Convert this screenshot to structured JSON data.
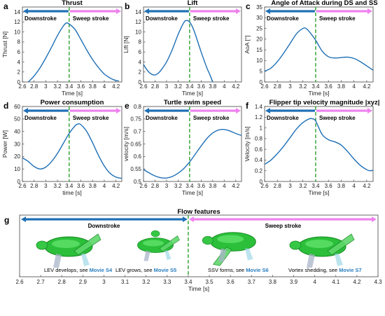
{
  "chart_data": [
    {
      "type": "line",
      "panel": "a",
      "title": "Thrust",
      "xlabel": "Time [s]",
      "ylabel": "Thrust [N]",
      "xlim": [
        2.6,
        4.3
      ],
      "ylim": [
        0,
        15
      ],
      "xticks": [
        "2.6",
        "2.8",
        "3",
        "3.2",
        "3.4",
        "3.6",
        "3.8",
        "4",
        "4.2"
      ],
      "yticks": [
        "0",
        "2",
        "4",
        "6",
        "8",
        "10",
        "12",
        "14"
      ],
      "divider_x": 3.4,
      "labels": {
        "left": "Downstroke",
        "right": "Sweep stroke"
      },
      "x": [
        2.7,
        2.8,
        2.9,
        3.0,
        3.1,
        3.2,
        3.3,
        3.35,
        3.4,
        3.5,
        3.6,
        3.7,
        3.8,
        3.9,
        4.0,
        4.1,
        4.15,
        4.2,
        4.25
      ],
      "y": [
        0.0,
        1.2,
        2.8,
        4.8,
        7.0,
        9.3,
        11.2,
        11.8,
        11.6,
        10.5,
        8.5,
        6.4,
        4.5,
        2.9,
        1.6,
        0.8,
        0.5,
        0.3,
        0.2
      ]
    },
    {
      "type": "line",
      "panel": "b",
      "title": "Lift",
      "xlabel": "Time [s]",
      "ylabel": "Lift [N]",
      "xlim": [
        2.6,
        4.3
      ],
      "ylim": [
        0,
        15
      ],
      "xticks": [
        "2.6",
        "2.8",
        "3",
        "3.2",
        "3.4",
        "3.6",
        "3.8",
        "4",
        "4.2"
      ],
      "yticks": [
        "0",
        "2",
        "4",
        "6",
        "8",
        "10",
        "12",
        "14"
      ],
      "divider_x": 3.4,
      "labels": {
        "left": "Downstroke",
        "right": "Sweep stroke"
      },
      "x": [
        2.6,
        2.65,
        2.7,
        2.75,
        2.8,
        2.85,
        2.9,
        3.0,
        3.1,
        3.2,
        3.3,
        3.35,
        3.4,
        3.45,
        3.5,
        3.6,
        3.7,
        3.75,
        3.8
      ],
      "y": [
        3.5,
        2.6,
        1.9,
        1.5,
        1.4,
        1.7,
        2.3,
        4.0,
        6.5,
        9.5,
        11.9,
        12.3,
        12.0,
        11.0,
        9.5,
        6.0,
        2.8,
        1.5,
        0.0
      ]
    },
    {
      "type": "line",
      "panel": "c",
      "title": "Angle of Attack during DS and SS",
      "xlabel": "Time [s]",
      "ylabel": "AoA [°]",
      "xlim": [
        2.6,
        4.3
      ],
      "ylim": [
        0,
        35
      ],
      "xticks": [
        "2.6",
        "2.8",
        "3",
        "3.2",
        "3.4",
        "3.6",
        "3.8",
        "4",
        "4.2"
      ],
      "yticks": [
        "0",
        "5",
        "10",
        "15",
        "20",
        "25",
        "30",
        "35"
      ],
      "divider_x": 3.4,
      "labels": {
        "left": "Downstroke",
        "right": "Sweep stroke"
      },
      "x": [
        2.6,
        2.7,
        2.8,
        2.9,
        3.0,
        3.1,
        3.2,
        3.25,
        3.3,
        3.4,
        3.5,
        3.6,
        3.7,
        3.8,
        3.9,
        4.0,
        4.1,
        4.2,
        4.3
      ],
      "y": [
        5.0,
        6.5,
        9.5,
        13.5,
        18.0,
        22.5,
        25.0,
        25.0,
        23.5,
        19.5,
        14.5,
        11.8,
        11.2,
        11.4,
        11.6,
        11.0,
        9.5,
        7.5,
        5.5
      ]
    },
    {
      "type": "line",
      "panel": "d",
      "title": "Power consumption",
      "xlabel": "time [s]",
      "ylabel": "Power [W]",
      "xlim": [
        2.6,
        4.3
      ],
      "ylim": [
        0,
        60
      ],
      "xticks": [
        "2.6",
        "2.8",
        "3",
        "3.2",
        "3.4",
        "3.6",
        "3.8",
        "4",
        "4.2"
      ],
      "yticks": [
        "0",
        "10",
        "20",
        "30",
        "40",
        "50",
        "60"
      ],
      "divider_x": 3.4,
      "labels": {
        "left": "Downstroke",
        "right": "Sweep stroke"
      },
      "x": [
        2.6,
        2.7,
        2.8,
        2.9,
        3.0,
        3.1,
        3.2,
        3.3,
        3.4,
        3.5,
        3.55,
        3.6,
        3.7,
        3.8,
        3.9,
        4.0,
        4.1,
        4.2,
        4.3
      ],
      "y": [
        19.0,
        16.0,
        12.0,
        10.0,
        11.5,
        16.0,
        22.5,
        30.5,
        38.5,
        44.5,
        46.0,
        45.5,
        40.0,
        31.0,
        21.0,
        12.5,
        6.5,
        3.5,
        2.5
      ]
    },
    {
      "type": "line",
      "panel": "e",
      "title": "Turtle swim speed",
      "xlabel": "Time [s]",
      "ylabel": "velocity [m/s]",
      "xlim": [
        2.6,
        4.3
      ],
      "ylim": [
        0.5,
        0.8
      ],
      "xticks": [
        "2.6",
        "2.8",
        "3",
        "3.2",
        "3.4",
        "3.6",
        "3.8",
        "4",
        "4.2"
      ],
      "yticks": [
        "0.5",
        "0.55",
        "0.6",
        "0.65",
        "0.7",
        "0.75",
        "0.8"
      ],
      "divider_x": 3.4,
      "labels": {
        "left": "Downstroke",
        "right": "Sweep stroke"
      },
      "x": [
        2.6,
        2.7,
        2.8,
        2.9,
        3.0,
        3.1,
        3.2,
        3.3,
        3.4,
        3.5,
        3.6,
        3.7,
        3.8,
        3.9,
        4.0,
        4.1,
        4.2,
        4.3
      ],
      "y": [
        0.548,
        0.534,
        0.522,
        0.515,
        0.514,
        0.52,
        0.533,
        0.552,
        0.578,
        0.61,
        0.642,
        0.672,
        0.694,
        0.706,
        0.708,
        0.702,
        0.692,
        0.684
      ]
    },
    {
      "type": "line",
      "panel": "f",
      "title": "Flipper tip velocity magnitude |xyz|",
      "xlabel": "Time [s]",
      "ylabel": "Velocity [m/s]",
      "xlim": [
        2.6,
        4.3
      ],
      "ylim": [
        0,
        1.4
      ],
      "xticks": [
        "2.6",
        "2.8",
        "3",
        "3.2",
        "3.4",
        "3.6",
        "3.8",
        "4",
        "4.2"
      ],
      "yticks": [
        "0",
        "0.2",
        "0.4",
        "0.6",
        "0.8",
        "1",
        "1.2",
        "1.4"
      ],
      "divider_x": 3.4,
      "labels": {
        "left": "Downstroke",
        "right": "Sweep stroke"
      },
      "x": [
        2.6,
        2.7,
        2.8,
        2.9,
        3.0,
        3.1,
        3.2,
        3.3,
        3.35,
        3.4,
        3.5,
        3.6,
        3.7,
        3.8,
        3.9,
        4.0,
        4.1,
        4.2,
        4.25,
        4.3
      ],
      "y": [
        0.32,
        0.4,
        0.52,
        0.66,
        0.82,
        0.98,
        1.1,
        1.17,
        1.17,
        1.13,
        0.88,
        0.78,
        0.74,
        0.68,
        0.56,
        0.42,
        0.3,
        0.22,
        0.2,
        0.21
      ]
    }
  ],
  "flow": {
    "panel": "g",
    "title": "Flow features",
    "xlabel": "Time [s]",
    "xlim": [
      2.6,
      4.3
    ],
    "xticks": [
      "2.6",
      "2.7",
      "2.8",
      "2.9",
      "3",
      "3.1",
      "3.2",
      "3.3",
      "3.4",
      "3.5",
      "3.6",
      "3.7",
      "3.8",
      "3.9",
      "4",
      "4.1",
      "4.2",
      "4.3"
    ],
    "divider_x": 3.4,
    "labels": {
      "left": "Downstroke",
      "right": "Sweep stroke"
    },
    "captions": [
      {
        "text": "LEV develops, see ",
        "movie": "Movie S4"
      },
      {
        "text": "LEV grows, see ",
        "movie": "Movie S5"
      },
      {
        "text": "SSV forms, see ",
        "movie": "Movie S6"
      },
      {
        "text": "Vortex shedding, see ",
        "movie": "Movie S7"
      }
    ]
  },
  "colors": {
    "line": "#1f6fb5",
    "downstroke_arrow": "#1f6fb5",
    "sweep_arrow": "#ee82ee",
    "divider": "#2ca02c"
  }
}
